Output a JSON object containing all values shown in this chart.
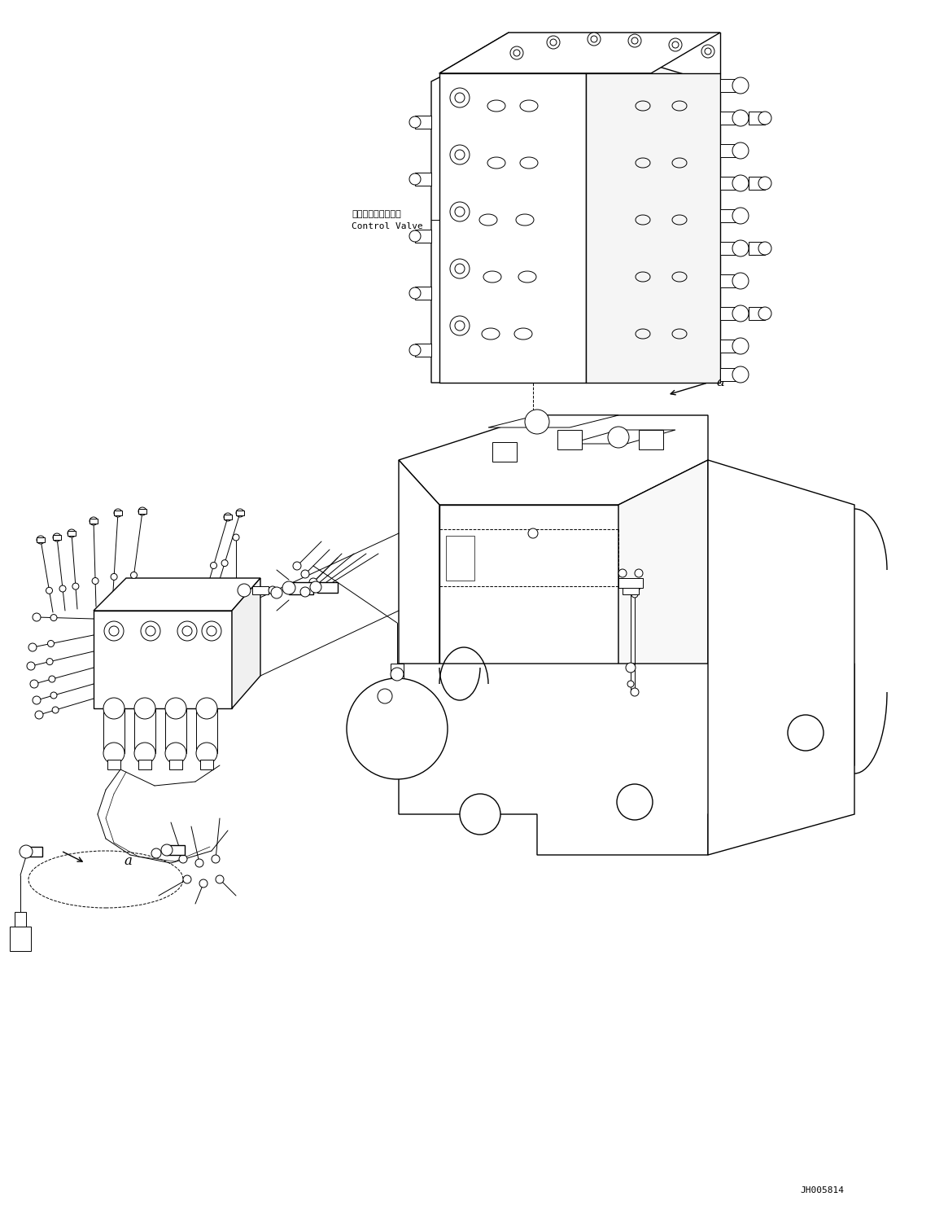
{
  "fig_width": 11.49,
  "fig_height": 14.91,
  "dpi": 100,
  "background_color": "#ffffff",
  "line_color": "#000000",
  "text_color": "#000000",
  "label_japanese": "コントロールバルブ",
  "label_english": "Control Valve",
  "part_code": "JH005814",
  "font_size_label": 8,
  "font_size_code": 8
}
